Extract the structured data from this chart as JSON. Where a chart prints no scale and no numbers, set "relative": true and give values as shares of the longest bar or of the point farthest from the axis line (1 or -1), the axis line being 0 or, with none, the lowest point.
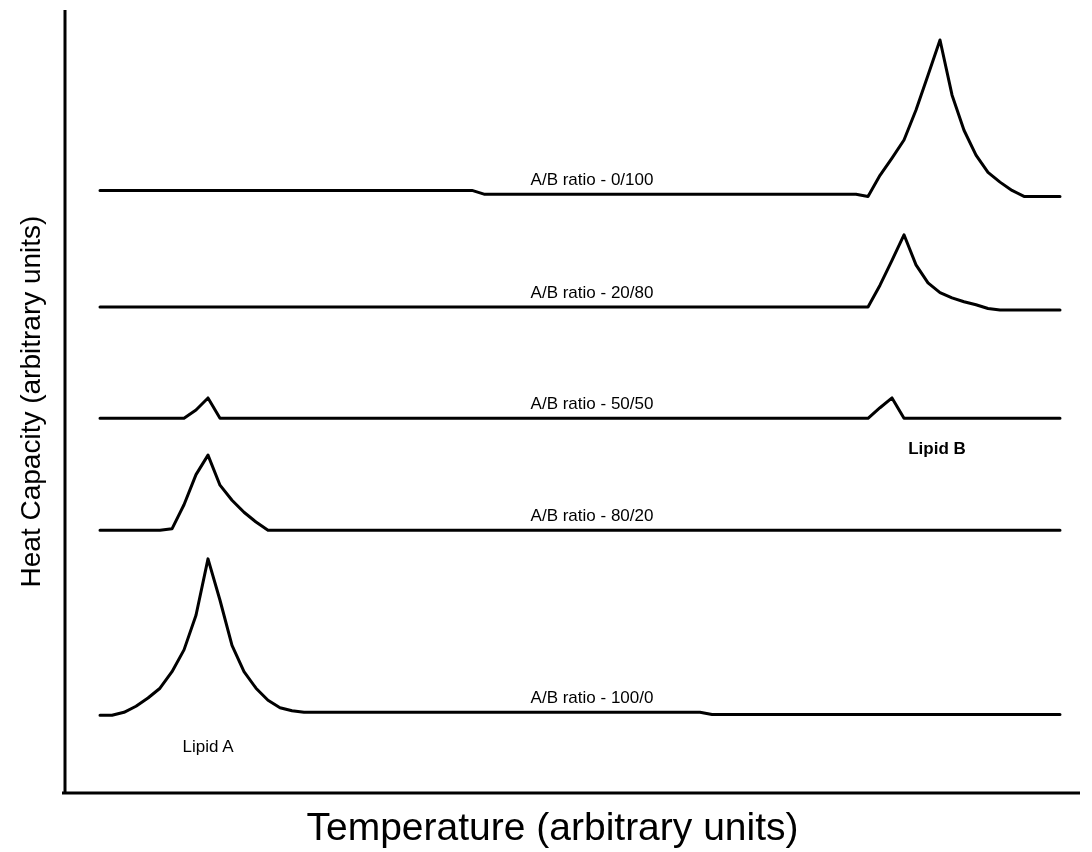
{
  "chart_data": {
    "type": "line",
    "relative": true,
    "xlabel": "Temperature (arbitrary units)",
    "ylabel": "Heat Capacity (arbitrary units)",
    "line_style": "solid",
    "marker": "none",
    "categories": [
      null,
      null,
      null,
      null,
      null,
      null,
      null,
      null,
      null,
      null,
      null,
      null,
      null,
      null,
      null,
      null,
      null,
      null,
      null,
      null,
      null,
      null,
      null,
      null,
      null,
      null,
      null,
      null,
      null,
      null,
      null,
      null,
      null,
      null,
      null,
      null,
      null,
      null,
      null,
      null,
      null,
      null,
      null,
      null,
      null,
      null,
      null,
      null,
      null,
      null,
      null,
      null,
      null,
      null,
      null,
      null,
      null,
      null,
      null,
      null,
      null,
      null,
      null,
      null,
      null,
      null,
      null,
      null,
      null,
      null,
      null,
      null,
      null,
      null,
      null,
      null,
      null,
      null,
      null,
      null,
      null
    ],
    "annotations": [
      "Lipid A",
      "Lipid B"
    ],
    "series": [
      {
        "name": "A/B ratio - 0/100",
        "color": "#000000",
        "values": [
          0.8,
          0.8,
          0.8,
          0.8,
          0.8,
          0.8,
          0.8,
          0.8,
          0.8,
          0.8,
          0.8,
          0.8,
          0.8,
          0.8,
          0.8,
          0.8,
          0.8,
          0.8,
          0.8,
          0.8,
          0.8,
          0.8,
          0.8,
          0.8,
          0.8,
          0.8,
          0.8,
          0.8,
          0.8,
          0.8,
          0.8,
          0.8,
          0.795,
          0.795,
          0.795,
          0.795,
          0.795,
          0.795,
          0.795,
          0.795,
          0.795,
          0.795,
          0.795,
          0.795,
          0.795,
          0.795,
          0.795,
          0.795,
          0.795,
          0.795,
          0.795,
          0.795,
          0.795,
          0.795,
          0.795,
          0.795,
          0.795,
          0.795,
          0.795,
          0.795,
          0.795,
          0.795,
          0.795,
          0.795,
          0.792,
          0.82,
          0.843,
          0.867,
          0.907,
          0.953,
          1.0,
          0.927,
          0.88,
          0.847,
          0.824,
          0.811,
          0.8,
          0.792,
          0.792,
          0.792,
          0.792
        ]
      },
      {
        "name": "A/B ratio - 20/80",
        "color": "#000000",
        "values": [
          0.645,
          0.645,
          0.645,
          0.645,
          0.645,
          0.645,
          0.645,
          0.645,
          0.645,
          0.645,
          0.645,
          0.645,
          0.645,
          0.645,
          0.645,
          0.645,
          0.645,
          0.645,
          0.645,
          0.645,
          0.645,
          0.645,
          0.645,
          0.645,
          0.645,
          0.645,
          0.645,
          0.645,
          0.645,
          0.645,
          0.645,
          0.645,
          0.645,
          0.645,
          0.645,
          0.645,
          0.645,
          0.645,
          0.645,
          0.645,
          0.645,
          0.645,
          0.645,
          0.645,
          0.645,
          0.645,
          0.645,
          0.645,
          0.645,
          0.645,
          0.645,
          0.645,
          0.645,
          0.645,
          0.645,
          0.645,
          0.645,
          0.645,
          0.645,
          0.645,
          0.645,
          0.645,
          0.645,
          0.645,
          0.645,
          0.674,
          0.707,
          0.741,
          0.701,
          0.677,
          0.664,
          0.657,
          0.652,
          0.648,
          0.643,
          0.641,
          0.641,
          0.641,
          0.641,
          0.641,
          0.641
        ]
      },
      {
        "name": "A/B ratio - 50/50",
        "color": "#000000",
        "values": [
          0.497,
          0.497,
          0.497,
          0.497,
          0.497,
          0.497,
          0.497,
          0.497,
          0.508,
          0.524,
          0.497,
          0.497,
          0.497,
          0.497,
          0.497,
          0.497,
          0.497,
          0.497,
          0.497,
          0.497,
          0.497,
          0.497,
          0.497,
          0.497,
          0.497,
          0.497,
          0.497,
          0.497,
          0.497,
          0.497,
          0.497,
          0.497,
          0.497,
          0.497,
          0.497,
          0.497,
          0.497,
          0.497,
          0.497,
          0.497,
          0.497,
          0.497,
          0.497,
          0.497,
          0.497,
          0.497,
          0.497,
          0.497,
          0.497,
          0.497,
          0.497,
          0.497,
          0.497,
          0.497,
          0.497,
          0.497,
          0.497,
          0.497,
          0.497,
          0.497,
          0.497,
          0.497,
          0.497,
          0.497,
          0.497,
          0.511,
          0.524,
          0.497,
          0.497,
          0.497,
          0.497,
          0.497,
          0.497,
          0.497,
          0.497,
          0.497,
          0.497,
          0.497,
          0.497,
          0.497,
          0.497
        ]
      },
      {
        "name": "A/B ratio - 80/20",
        "color": "#000000",
        "values": [
          0.348,
          0.348,
          0.348,
          0.348,
          0.348,
          0.348,
          0.35,
          0.382,
          0.422,
          0.448,
          0.408,
          0.388,
          0.372,
          0.359,
          0.348,
          0.348,
          0.348,
          0.348,
          0.348,
          0.348,
          0.348,
          0.348,
          0.348,
          0.348,
          0.348,
          0.348,
          0.348,
          0.348,
          0.348,
          0.348,
          0.348,
          0.348,
          0.348,
          0.348,
          0.348,
          0.348,
          0.348,
          0.348,
          0.348,
          0.348,
          0.348,
          0.348,
          0.348,
          0.348,
          0.348,
          0.348,
          0.348,
          0.348,
          0.348,
          0.348,
          0.348,
          0.348,
          0.348,
          0.348,
          0.348,
          0.348,
          0.348,
          0.348,
          0.348,
          0.348,
          0.348,
          0.348,
          0.348,
          0.348,
          0.348,
          0.348,
          0.348,
          0.348,
          0.348,
          0.348,
          0.348,
          0.348,
          0.348,
          0.348,
          0.348,
          0.348,
          0.348,
          0.348,
          0.348,
          0.348,
          0.348
        ]
      },
      {
        "name": "A/B ratio - 100/0",
        "color": "#000000",
        "values": [
          0.102,
          0.102,
          0.106,
          0.114,
          0.125,
          0.138,
          0.16,
          0.189,
          0.235,
          0.31,
          0.255,
          0.195,
          0.16,
          0.138,
          0.122,
          0.112,
          0.108,
          0.106,
          0.106,
          0.106,
          0.106,
          0.106,
          0.106,
          0.106,
          0.106,
          0.106,
          0.106,
          0.106,
          0.106,
          0.106,
          0.106,
          0.106,
          0.106,
          0.106,
          0.106,
          0.106,
          0.106,
          0.106,
          0.106,
          0.106,
          0.106,
          0.106,
          0.106,
          0.106,
          0.106,
          0.106,
          0.106,
          0.106,
          0.106,
          0.106,
          0.106,
          0.103,
          0.103,
          0.103,
          0.103,
          0.103,
          0.103,
          0.103,
          0.103,
          0.103,
          0.103,
          0.103,
          0.103,
          0.103,
          0.103,
          0.103,
          0.103,
          0.103,
          0.103,
          0.103,
          0.103,
          0.103,
          0.103,
          0.103,
          0.103,
          0.103,
          0.103,
          0.103,
          0.103,
          0.103,
          0.103
        ]
      }
    ]
  }
}
